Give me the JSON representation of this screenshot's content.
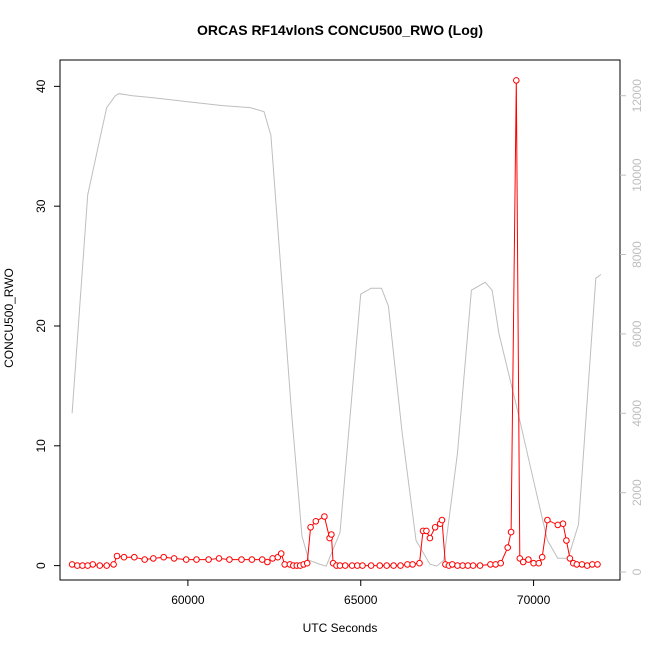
{
  "chart_data": {
    "type": "line",
    "title": "ORCAS RF14vlonS CONCU500_RWO (Log)",
    "xlabel": "UTC Seconds",
    "ylabel": "CONCU500_RWO",
    "xlim": [
      56300,
      72500
    ],
    "ylim": [
      -1.2,
      42.2
    ],
    "y2lim": [
      -200,
      12900
    ],
    "x_ticks": [
      60000,
      65000,
      70000
    ],
    "y_ticks": [
      0,
      10,
      20,
      30,
      40
    ],
    "y2_ticks": [
      0,
      2000,
      4000,
      6000,
      8000,
      10000,
      12000
    ],
    "colors": {
      "primary": "#ff0000",
      "secondary": "#bebebe",
      "axis": "#000000"
    },
    "series": [
      {
        "axis": "left",
        "style": "points-and-lines",
        "color": "#ff0000",
        "x": [
          56650,
          56800,
          56950,
          57100,
          57250,
          57450,
          57650,
          57850,
          57950,
          58150,
          58450,
          58750,
          59000,
          59300,
          59600,
          59950,
          60250,
          60600,
          60900,
          61200,
          61550,
          61850,
          62150,
          62300,
          62450,
          62600,
          62700,
          62800,
          62950,
          63050,
          63150,
          63250,
          63350,
          63450,
          63550,
          63700,
          63950,
          64100,
          64150,
          64200,
          64300,
          64400,
          64550,
          64750,
          64900,
          65050,
          65300,
          65550,
          65750,
          65950,
          66150,
          66350,
          66500,
          66700,
          66800,
          66900,
          67000,
          67150,
          67300,
          67350,
          67450,
          67550,
          67650,
          67800,
          67950,
          68100,
          68250,
          68450,
          68750,
          68900,
          69050,
          69250,
          69350,
          69500,
          69600,
          69700,
          69850,
          70000,
          70150,
          70250,
          70400,
          70700,
          70850,
          70950,
          71050,
          71150,
          71250,
          71400,
          71550,
          71700,
          71850
        ],
        "y": [
          0.1,
          0.0,
          0.0,
          0.0,
          0.1,
          0.0,
          0.0,
          0.1,
          0.8,
          0.7,
          0.7,
          0.5,
          0.6,
          0.7,
          0.6,
          0.5,
          0.5,
          0.5,
          0.6,
          0.5,
          0.5,
          0.5,
          0.5,
          0.3,
          0.6,
          0.7,
          1.0,
          0.1,
          0.1,
          0.0,
          0.0,
          0.0,
          0.1,
          0.2,
          3.2,
          3.7,
          4.1,
          2.3,
          2.6,
          0.2,
          0.0,
          0.0,
          0.0,
          0.0,
          0.0,
          0.0,
          0.0,
          0.0,
          0.0,
          0.0,
          0.0,
          0.1,
          0.1,
          0.2,
          2.9,
          2.9,
          2.3,
          3.2,
          3.5,
          3.8,
          0.1,
          0.0,
          0.1,
          0.0,
          0.0,
          0.0,
          0.0,
          0.0,
          0.1,
          0.1,
          0.2,
          1.5,
          2.8,
          40.5,
          0.6,
          0.3,
          0.5,
          0.2,
          0.2,
          0.7,
          3.8,
          3.4,
          3.5,
          2.1,
          0.6,
          0.2,
          0.1,
          0.1,
          0.0,
          0.1,
          0.1
        ]
      },
      {
        "axis": "right",
        "style": "line",
        "color": "#bebebe",
        "x": [
          56650,
          57100,
          57400,
          57650,
          57900,
          58000,
          58400,
          59000,
          60000,
          61000,
          61800,
          62200,
          62400,
          63000,
          63300,
          63500,
          63800,
          64000,
          64400,
          65000,
          65300,
          65600,
          65800,
          66200,
          66600,
          67000,
          67200,
          67400,
          67800,
          68200,
          68600,
          68800,
          69000,
          69500,
          70000,
          70400,
          70700,
          71000,
          71300,
          71800,
          71950
        ],
        "y": [
          4000,
          9500,
          10700,
          11700,
          12000,
          12050,
          12000,
          11950,
          11850,
          11750,
          11700,
          11600,
          11000,
          4000,
          900,
          300,
          200,
          150,
          1000,
          7000,
          7150,
          7150,
          6700,
          3500,
          800,
          200,
          150,
          300,
          3000,
          7100,
          7300,
          7100,
          6000,
          4200,
          2300,
          800,
          350,
          350,
          1200,
          7400,
          7500
        ]
      }
    ]
  }
}
